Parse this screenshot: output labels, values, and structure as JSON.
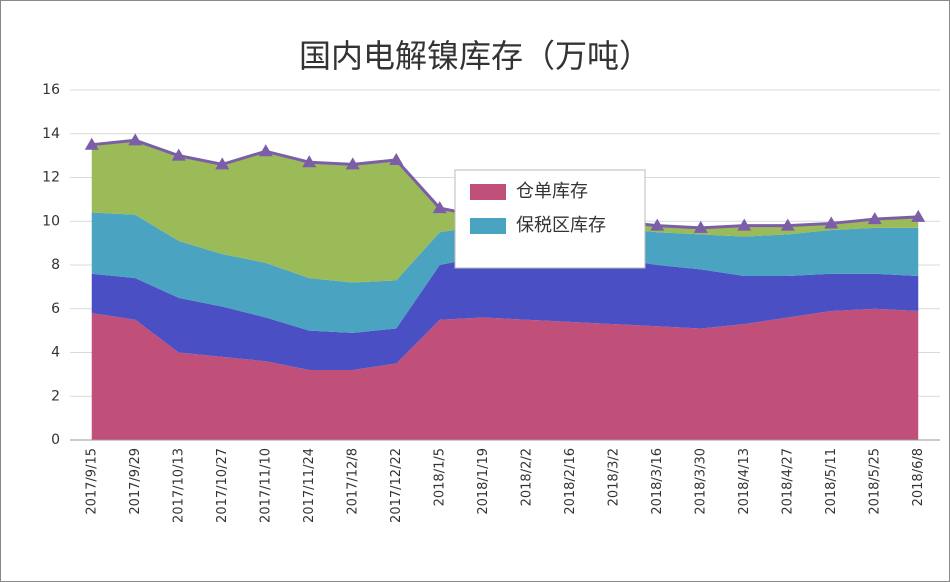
{
  "chart_data": {
    "type": "stacked-area",
    "title": "国内电解镍库存（万吨）",
    "categories": [
      "2017/9/15",
      "2017/9/29",
      "2017/10/13",
      "2017/10/27",
      "2017/11/10",
      "2017/11/24",
      "2017/12/8",
      "2017/12/22",
      "2018/1/5",
      "2018/1/19",
      "2018/2/2",
      "2018/2/16",
      "2018/3/2",
      "2018/3/16",
      "2018/3/30",
      "2018/4/13",
      "2018/4/27",
      "2018/5/11",
      "2018/5/25",
      "2018/6/8"
    ],
    "series": [
      {
        "name": "仓单库存",
        "color": "#c0507a",
        "values": [
          5.8,
          5.5,
          4.0,
          3.8,
          3.6,
          3.2,
          3.2,
          3.5,
          5.5,
          5.6,
          5.5,
          5.4,
          5.3,
          5.2,
          5.1,
          5.3,
          5.6,
          5.9,
          6.0,
          5.9
        ]
      },
      {
        "color": "#4a4fc4",
        "values": [
          1.8,
          1.9,
          2.5,
          2.3,
          2.0,
          1.8,
          1.7,
          1.6,
          2.5,
          2.8,
          3.0,
          2.6,
          3.0,
          2.8,
          2.7,
          2.2,
          1.9,
          1.7,
          1.6,
          1.6
        ]
      },
      {
        "name": "保税区库存",
        "color": "#4aa3c0",
        "values": [
          2.8,
          2.9,
          2.6,
          2.4,
          2.5,
          2.4,
          2.3,
          2.2,
          1.5,
          1.4,
          1.2,
          1.5,
          1.4,
          1.5,
          1.6,
          1.8,
          1.9,
          2.0,
          2.1,
          2.2
        ]
      },
      {
        "color": "#9bbb59",
        "values": [
          3.1,
          3.4,
          3.9,
          4.1,
          5.1,
          5.3,
          5.4,
          5.5,
          1.1,
          0.4,
          0.3,
          0.4,
          0.3,
          0.3,
          0.3,
          0.5,
          0.4,
          0.3,
          0.4,
          0.5
        ]
      }
    ],
    "total_line": {
      "color": "#7b5ea7",
      "values": [
        13.5,
        13.7,
        13.0,
        12.6,
        13.2,
        12.7,
        12.6,
        12.8,
        10.6,
        10.2,
        10.0,
        9.9,
        10.0,
        9.8,
        9.7,
        9.8,
        9.8,
        9.9,
        10.1,
        10.2
      ]
    },
    "ylim": [
      0,
      16
    ],
    "yticks": [
      0,
      2,
      4,
      6,
      8,
      10,
      12,
      14,
      16
    ],
    "grid": true
  }
}
